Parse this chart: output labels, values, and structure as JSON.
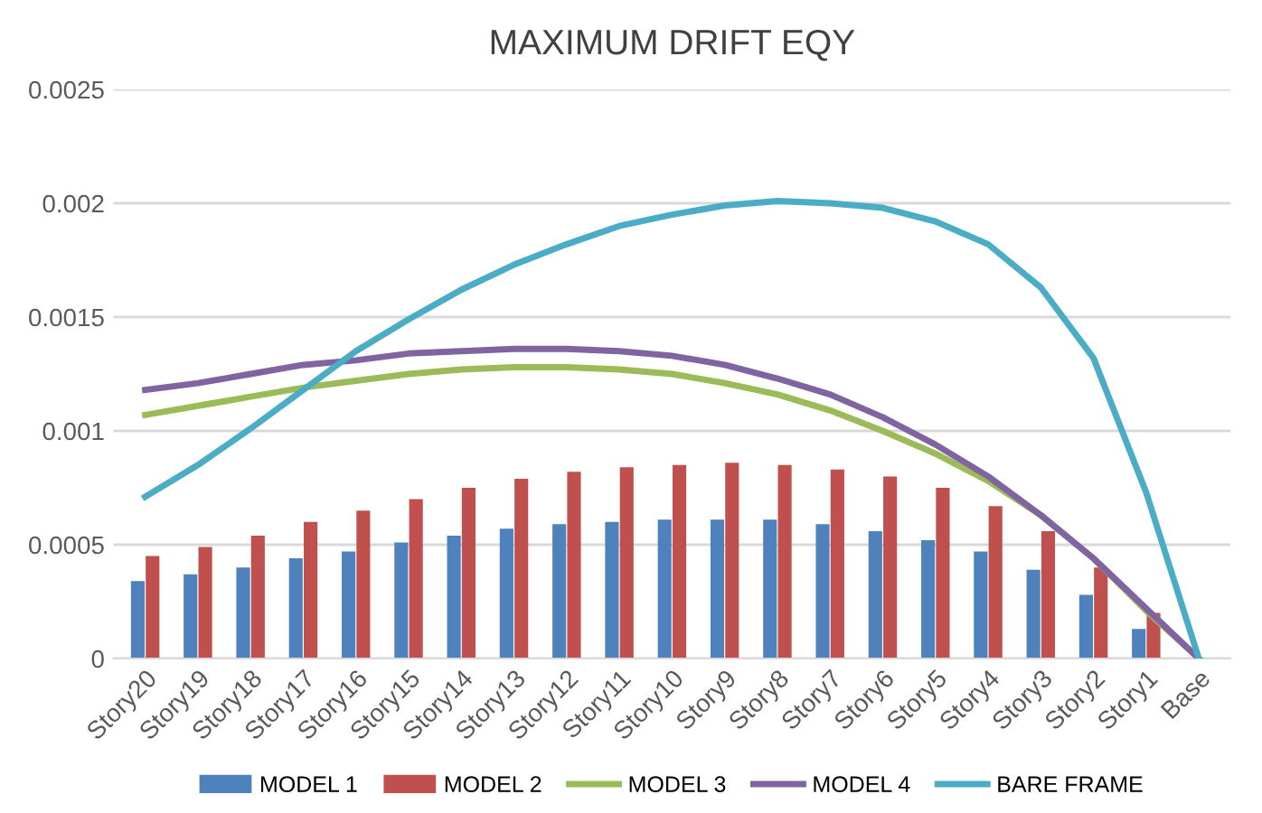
{
  "chart_data": {
    "type": "bar",
    "title": "MAXIMUM DRIFT EQY",
    "categories": [
      "Story20",
      "Story19",
      "Story18",
      "Story17",
      "Story16",
      "Story15",
      "Story14",
      "Story13",
      "Story12",
      "Story11",
      "Story10",
      "Story9",
      "Story8",
      "Story7",
      "Story6",
      "Story5",
      "Story4",
      "Story3",
      "Story2",
      "Story1",
      "Base"
    ],
    "series": [
      {
        "name": "MODEL 1",
        "color": "#4f81bd",
        "values": [
          0.00034,
          0.00037,
          0.0004,
          0.00044,
          0.00047,
          0.00051,
          0.00054,
          0.00057,
          0.00059,
          0.0006,
          0.00061,
          0.00061,
          0.00061,
          0.00059,
          0.00056,
          0.00052,
          0.00047,
          0.00039,
          0.00028,
          0.00013,
          0
        ]
      },
      {
        "name": "MODEL 2",
        "color": "#c0504d",
        "values": [
          0.00045,
          0.00049,
          0.00054,
          0.0006,
          0.00065,
          0.0007,
          0.00075,
          0.00079,
          0.00082,
          0.00084,
          0.00085,
          0.00086,
          0.00085,
          0.00083,
          0.0008,
          0.00075,
          0.00067,
          0.00056,
          0.0004,
          0.0002,
          0
        ]
      },
      {
        "name": "MODEL 3",
        "type": "line",
        "color": "#9bbb59",
        "values": [
          0.00107,
          0.00111,
          0.00115,
          0.00119,
          0.00122,
          0.00125,
          0.00127,
          0.00128,
          0.00128,
          0.00127,
          0.00125,
          0.00121,
          0.00116,
          0.00109,
          0.001,
          0.0009,
          0.00078,
          0.00063,
          0.00044,
          0.00021,
          0
        ]
      },
      {
        "name": "MODEL 4",
        "type": "line",
        "color": "#8064a2",
        "values": [
          0.00118,
          0.00121,
          0.00125,
          0.00129,
          0.00131,
          0.00134,
          0.00135,
          0.00136,
          0.00136,
          0.00135,
          0.00133,
          0.00129,
          0.00123,
          0.00116,
          0.00106,
          0.00094,
          0.0008,
          0.00063,
          0.00044,
          0.00022,
          0
        ]
      },
      {
        "name": "BARE FRAME",
        "type": "line",
        "color": "#4bacc6",
        "values": [
          0.00071,
          0.00085,
          0.00101,
          0.00118,
          0.00135,
          0.00149,
          0.00162,
          0.00173,
          0.00182,
          0.0019,
          0.00195,
          0.00199,
          0.00201,
          0.002,
          0.00198,
          0.00192,
          0.00182,
          0.00163,
          0.00132,
          0.00073,
          0
        ]
      }
    ],
    "ylim": [
      0,
      0.0025
    ],
    "yticks": [
      0,
      0.0005,
      0.001,
      0.0015,
      0.002,
      0.0025
    ],
    "grid": "y",
    "legend": "bottom",
    "marker": "none",
    "line_style": "solid"
  }
}
